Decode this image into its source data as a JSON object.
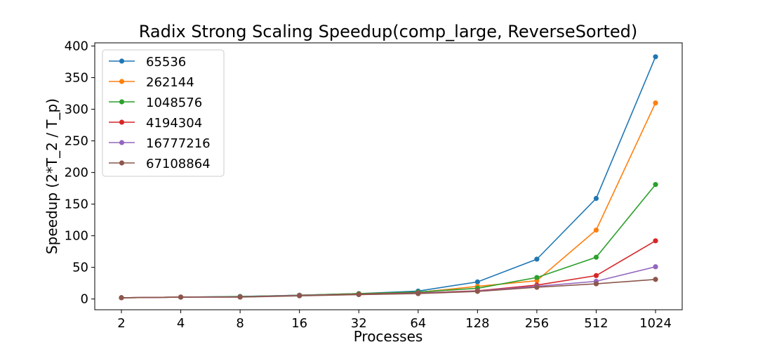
{
  "chart_data": {
    "type": "line",
    "title": "Radix Strong Scaling Speedup(comp_large, ReverseSorted)",
    "xlabel": "Processes",
    "ylabel": "Speedup (2*T_2 / T_p)",
    "categories": [
      "2",
      "4",
      "8",
      "16",
      "32",
      "64",
      "128",
      "256",
      "512",
      "1024"
    ],
    "ylim": [
      -17,
      405
    ],
    "yticks": [
      0,
      50,
      100,
      150,
      200,
      250,
      300,
      350,
      400
    ],
    "grid": false,
    "legend_position": "upper-left",
    "series": [
      {
        "name": "65536",
        "color": "#1f77b4",
        "values": [
          2,
          3,
          4,
          6,
          8.5,
          12.5,
          27,
          63,
          159,
          383
        ]
      },
      {
        "name": "262144",
        "color": "#ff7f0e",
        "values": [
          2,
          3,
          3.5,
          6,
          8,
          10.5,
          20,
          29,
          109,
          310
        ]
      },
      {
        "name": "1048576",
        "color": "#2ca02c",
        "values": [
          2,
          3,
          3.8,
          6,
          8.5,
          11,
          17,
          34,
          66,
          181
        ]
      },
      {
        "name": "4194304",
        "color": "#d62728",
        "values": [
          2,
          3,
          3.2,
          5.5,
          7.5,
          9.5,
          13,
          22,
          37,
          92
        ]
      },
      {
        "name": "16777216",
        "color": "#9467bd",
        "values": [
          2,
          3,
          3.2,
          5.5,
          7,
          9,
          12.5,
          20,
          28,
          51
        ]
      },
      {
        "name": "67108864",
        "color": "#8c564b",
        "values": [
          2,
          3,
          3,
          5,
          7,
          8.5,
          12,
          18.5,
          24,
          31
        ]
      }
    ]
  }
}
